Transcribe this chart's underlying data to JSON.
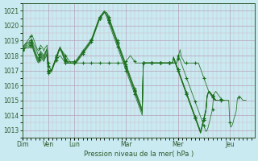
{
  "title": "",
  "xlabel": "Pression niveau de la mer( hPa )",
  "ylabel": "",
  "bg_color": "#c8eaf0",
  "line_color": "#1a6e1a",
  "ylim": [
    1012.5,
    1021.5
  ],
  "yticks": [
    1013,
    1014,
    1015,
    1016,
    1017,
    1018,
    1019,
    1020,
    1021
  ],
  "day_labels": [
    "Dim",
    "Ven",
    "Lun",
    "Mar",
    "Mer",
    "Jeu"
  ],
  "day_positions": [
    0,
    24,
    48,
    96,
    144,
    192
  ],
  "num_points": 216,
  "series": [
    [
      1018.5,
      1018.6,
      1018.7,
      1018.8,
      1018.8,
      1018.9,
      1018.9,
      1019.0,
      1019.0,
      1019.1,
      1018.9,
      1018.7,
      1018.6,
      1018.4,
      1018.2,
      1018.0,
      1018.1,
      1018.3,
      1018.2,
      1018.1,
      1018.0,
      1018.2,
      1018.3,
      1018.4,
      1017.3,
      1017.2,
      1017.1,
      1017.0,
      1017.2,
      1017.4,
      1017.5,
      1017.6,
      1017.7,
      1017.8,
      1017.9,
      1018.0,
      1017.9,
      1017.8,
      1017.7,
      1017.6,
      1017.5,
      1017.5,
      1017.5,
      1017.5,
      1017.5,
      1017.5,
      1017.5,
      1017.5,
      1017.5,
      1017.5,
      1017.5,
      1017.5,
      1017.5,
      1017.5,
      1017.5,
      1017.5,
      1017.5,
      1017.5,
      1017.5,
      1017.5,
      1017.5,
      1017.5,
      1017.5,
      1017.5,
      1017.5,
      1017.5,
      1017.5,
      1017.5,
      1017.5,
      1017.5,
      1017.5,
      1017.5,
      1017.5,
      1017.5,
      1017.5,
      1017.5,
      1017.5,
      1017.5,
      1017.5,
      1017.5,
      1017.5,
      1017.5,
      1017.5,
      1017.5,
      1017.5,
      1017.5,
      1017.5,
      1017.5,
      1017.5,
      1017.5,
      1017.5,
      1017.5,
      1017.5,
      1017.5,
      1017.5,
      1017.5,
      1017.6,
      1017.7,
      1017.8,
      1017.9,
      1018.0,
      1017.9,
      1017.8,
      1017.7,
      1017.6,
      1017.5,
      1017.5,
      1017.5,
      1017.5,
      1017.5,
      1017.5,
      1017.5,
      1017.5,
      1017.5,
      1017.5,
      1017.5,
      1017.5,
      1017.5,
      1017.5,
      1017.5,
      1017.5,
      1017.5,
      1017.5,
      1017.5,
      1017.5,
      1017.5,
      1017.5,
      1017.5,
      1017.5,
      1017.5,
      1017.5,
      1017.5,
      1017.5,
      1017.5,
      1017.5,
      1017.5,
      1017.5,
      1017.5,
      1017.5,
      1017.5,
      1017.5,
      1017.5,
      1017.5,
      1017.5,
      1017.8,
      1018.1,
      1018.4,
      1018.0,
      1017.8,
      1017.7,
      1017.5,
      1017.5,
      1017.5,
      1017.5,
      1017.5,
      1017.5,
      1017.5,
      1017.5,
      1017.5,
      1017.5,
      1017.5,
      1017.5,
      1017.5,
      1017.5,
      1017.3,
      1017.1,
      1016.9,
      1016.7,
      1016.5,
      1016.3,
      1016.1,
      1015.9,
      1015.7,
      1015.5,
      1015.4,
      1015.3,
      1015.2,
      1015.1,
      1015.0,
      1015.0,
      1015.0,
      1015.0,
      1015.0,
      1015.0,
      1015.0,
      1015.0,
      1015.0,
      1015.0,
      1015.0,
      1015.0,
      1015.0,
      1015.0,
      1013.5,
      1013.2,
      1013.3,
      1013.5,
      1013.8,
      1014.0,
      1014.3,
      1015.1,
      1015.2,
      1015.3,
      1015.2,
      1015.1,
      1015.0,
      1015.0,
      1015.0,
      1015.0
    ],
    [
      1018.5,
      1018.6,
      1018.7,
      1018.8,
      1018.9,
      1019.0,
      1019.1,
      1019.2,
      1019.3,
      1019.4,
      1019.2,
      1019.0,
      1018.8,
      1018.6,
      1018.4,
      1018.3,
      1018.5,
      1018.7,
      1018.6,
      1018.5,
      1018.3,
      1018.5,
      1018.6,
      1018.7,
      1017.5,
      1017.3,
      1017.1,
      1017.0,
      1017.2,
      1017.4,
      1017.6,
      1017.8,
      1018.0,
      1018.2,
      1018.4,
      1018.5,
      1018.3,
      1018.1,
      1017.9,
      1017.7,
      1017.5,
      1017.5,
      1017.5,
      1017.5,
      1017.5,
      1017.5,
      1017.5,
      1017.5,
      1017.5,
      1017.5,
      1017.6,
      1017.7,
      1017.8,
      1017.9,
      1018.0,
      1018.1,
      1018.2,
      1018.3,
      1018.4,
      1018.5,
      1018.6,
      1018.7,
      1018.8,
      1018.9,
      1019.0,
      1019.2,
      1019.4,
      1019.6,
      1019.8,
      1020.0,
      1020.2,
      1020.4,
      1020.6,
      1020.7,
      1020.8,
      1020.9,
      1021.0,
      1020.8,
      1020.6,
      1020.4,
      1020.2,
      1020.0,
      1019.8,
      1019.6,
      1019.4,
      1019.2,
      1019.0,
      1018.8,
      1018.6,
      1018.4,
      1018.2,
      1018.0,
      1017.8,
      1017.6,
      1017.4,
      1017.2,
      1017.0,
      1016.8,
      1016.6,
      1016.4,
      1016.2,
      1016.0,
      1015.8,
      1015.6,
      1015.4,
      1015.2,
      1015.0,
      1014.8,
      1014.6,
      1014.4,
      1014.2,
      1014.0,
      1017.5,
      1017.5,
      1017.5,
      1017.5,
      1017.5,
      1017.5,
      1017.5,
      1017.5,
      1017.5,
      1017.5,
      1017.5,
      1017.5,
      1017.5,
      1017.5,
      1017.5,
      1017.5,
      1017.5,
      1017.5,
      1017.5,
      1017.5,
      1017.5,
      1017.5,
      1017.5,
      1017.5,
      1017.5,
      1017.5,
      1017.5,
      1017.5,
      1017.5,
      1017.5,
      1017.5,
      1017.5,
      1018.0,
      1017.9,
      1017.7,
      1017.5,
      1017.3,
      1017.1,
      1016.9,
      1016.7,
      1016.5,
      1016.3,
      1016.1,
      1015.9,
      1015.7,
      1015.5,
      1015.3,
      1015.1,
      1014.9,
      1014.7,
      1014.5,
      1014.3,
      1014.1,
      1013.9,
      1013.7,
      1013.5,
      1013.3,
      1013.1,
      1012.9,
      1013.0,
      1013.2,
      1013.5,
      1013.8,
      1014.1,
      1014.4,
      1015.3,
      1015.5,
      1015.6,
      1015.5,
      1015.4,
      1015.3,
      1015.2,
      1015.1,
      1015.0,
      1015.0,
      1015.0
    ],
    [
      1018.4,
      1018.5,
      1018.6,
      1018.7,
      1018.8,
      1018.8,
      1018.8,
      1018.9,
      1018.9,
      1019.0,
      1018.7,
      1018.5,
      1018.3,
      1018.1,
      1017.9,
      1017.8,
      1018.0,
      1018.2,
      1018.1,
      1018.0,
      1017.9,
      1018.1,
      1018.3,
      1018.5,
      1017.0,
      1017.0,
      1017.0,
      1017.0,
      1017.2,
      1017.4,
      1017.6,
      1017.8,
      1018.0,
      1018.2,
      1018.4,
      1018.6,
      1018.4,
      1018.2,
      1018.0,
      1017.8,
      1017.6,
      1017.6,
      1017.6,
      1017.6,
      1017.6,
      1017.6,
      1017.6,
      1017.6,
      1017.6,
      1017.6,
      1017.7,
      1017.8,
      1017.9,
      1018.0,
      1018.1,
      1018.2,
      1018.3,
      1018.4,
      1018.5,
      1018.6,
      1018.7,
      1018.8,
      1018.9,
      1019.0,
      1019.1,
      1019.3,
      1019.5,
      1019.7,
      1019.9,
      1020.1,
      1020.3,
      1020.5,
      1020.6,
      1020.7,
      1020.8,
      1020.9,
      1021.0,
      1020.9,
      1020.8,
      1020.7,
      1020.5,
      1020.3,
      1020.1,
      1019.9,
      1019.7,
      1019.5,
      1019.3,
      1019.1,
      1018.9,
      1018.7,
      1018.5,
      1018.3,
      1018.1,
      1017.9,
      1017.7,
      1017.5,
      1017.3,
      1017.1,
      1016.9,
      1016.7,
      1016.5,
      1016.3,
      1016.1,
      1015.9,
      1015.7,
      1015.5,
      1015.3,
      1015.1,
      1014.9,
      1014.7,
      1014.5,
      1014.3,
      1017.5,
      1017.5,
      1017.5,
      1017.5,
      1017.5,
      1017.5,
      1017.5,
      1017.5,
      1017.5,
      1017.5,
      1017.5,
      1017.5,
      1017.5,
      1017.5,
      1017.5,
      1017.5,
      1017.5,
      1017.5,
      1017.5,
      1017.5,
      1017.5,
      1017.5,
      1017.5,
      1017.5,
      1017.5,
      1017.5,
      1017.5,
      1017.5,
      1017.9,
      1017.7,
      1017.5,
      1017.3,
      1017.1,
      1016.9,
      1016.7,
      1016.5,
      1016.3,
      1016.1,
      1015.9,
      1015.7,
      1015.5,
      1015.3,
      1015.1,
      1014.9,
      1014.7,
      1014.5,
      1014.3,
      1014.1,
      1013.9,
      1013.7,
      1013.5,
      1013.3,
      1013.1,
      1012.9,
      1013.1,
      1013.4,
      1013.7,
      1014.0,
      1014.3,
      1015.2,
      1015.5,
      1015.6,
      1015.5,
      1015.4,
      1015.3,
      1015.2,
      1015.1,
      1015.0,
      1015.0,
      1015.0
    ],
    [
      1018.3,
      1018.4,
      1018.5,
      1018.6,
      1018.7,
      1018.7,
      1018.7,
      1018.8,
      1018.8,
      1018.9,
      1018.6,
      1018.4,
      1018.2,
      1018.0,
      1017.8,
      1017.7,
      1017.9,
      1018.1,
      1018.0,
      1017.9,
      1017.8,
      1018.0,
      1018.2,
      1018.4,
      1016.8,
      1016.8,
      1016.9,
      1016.9,
      1017.1,
      1017.3,
      1017.5,
      1017.7,
      1017.9,
      1018.1,
      1018.3,
      1018.5,
      1018.4,
      1018.3,
      1018.2,
      1018.1,
      1018.0,
      1017.9,
      1017.8,
      1017.7,
      1017.6,
      1017.5,
      1017.5,
      1017.5,
      1017.5,
      1017.5,
      1017.6,
      1017.7,
      1017.8,
      1017.9,
      1018.0,
      1018.1,
      1018.2,
      1018.3,
      1018.4,
      1018.5,
      1018.6,
      1018.7,
      1018.8,
      1018.9,
      1019.0,
      1019.2,
      1019.4,
      1019.6,
      1019.8,
      1020.0,
      1020.2,
      1020.4,
      1020.5,
      1020.6,
      1020.7,
      1020.8,
      1020.9,
      1020.9,
      1020.9,
      1020.8,
      1020.6,
      1020.4,
      1020.2,
      1020.0,
      1019.8,
      1019.6,
      1019.4,
      1019.2,
      1019.0,
      1018.8,
      1018.6,
      1018.4,
      1018.2,
      1018.0,
      1017.8,
      1017.6,
      1017.4,
      1017.2,
      1017.0,
      1016.8,
      1016.6,
      1016.4,
      1016.2,
      1016.0,
      1015.8,
      1015.6,
      1015.4,
      1015.2,
      1015.0,
      1014.8,
      1014.6,
      1014.4,
      1017.5,
      1017.5,
      1017.5,
      1017.5,
      1017.5,
      1017.5,
      1017.5,
      1017.5,
      1017.5,
      1017.5,
      1017.5,
      1017.5,
      1017.5,
      1017.5,
      1017.5,
      1017.5,
      1017.5,
      1017.5,
      1017.5,
      1017.5,
      1017.5,
      1017.5,
      1017.5,
      1017.5,
      1017.5,
      1017.5,
      1017.5,
      1017.5,
      1017.8,
      1017.6,
      1017.4,
      1017.2,
      1017.0,
      1016.8,
      1016.6,
      1016.4,
      1016.2,
      1016.0,
      1015.8,
      1015.6,
      1015.4,
      1015.2,
      1015.0,
      1014.8,
      1014.6,
      1014.4,
      1014.2,
      1014.0,
      1013.8,
      1013.6,
      1013.4,
      1013.2,
      1013.0,
      1012.8,
      1013.2,
      1013.5,
      1013.8,
      1014.1,
      1014.4,
      1015.3,
      1015.5,
      1015.6,
      1015.5,
      1015.4,
      1015.3,
      1015.2,
      1015.1,
      1015.0,
      1015.0,
      1015.0
    ],
    [
      1018.5,
      1018.5,
      1018.5,
      1018.5,
      1018.6,
      1018.6,
      1018.6,
      1018.7,
      1018.7,
      1018.8,
      1018.5,
      1018.3,
      1018.1,
      1017.9,
      1017.7,
      1017.6,
      1017.8,
      1018.0,
      1017.9,
      1017.8,
      1017.7,
      1017.9,
      1018.0,
      1018.2,
      1017.0,
      1017.0,
      1017.0,
      1017.0,
      1017.2,
      1017.4,
      1017.6,
      1017.8,
      1018.0,
      1018.2,
      1018.4,
      1018.5,
      1018.4,
      1018.3,
      1018.1,
      1018.0,
      1017.8,
      1017.7,
      1017.6,
      1017.5,
      1017.5,
      1017.5,
      1017.5,
      1017.5,
      1017.5,
      1017.5,
      1017.6,
      1017.7,
      1017.8,
      1017.9,
      1018.0,
      1018.1,
      1018.2,
      1018.3,
      1018.4,
      1018.5,
      1018.6,
      1018.7,
      1018.8,
      1018.9,
      1019.0,
      1019.2,
      1019.4,
      1019.6,
      1019.8,
      1020.0,
      1020.2,
      1020.4,
      1020.5,
      1020.6,
      1020.7,
      1020.8,
      1020.9,
      1020.8,
      1020.7,
      1020.6,
      1020.4,
      1020.2,
      1020.0,
      1019.8,
      1019.6,
      1019.4,
      1019.2,
      1019.0,
      1018.8,
      1018.6,
      1018.4,
      1018.2,
      1018.0,
      1017.8,
      1017.6,
      1017.4,
      1017.2,
      1017.0,
      1016.8,
      1016.6,
      1016.4,
      1016.2,
      1016.0,
      1015.8,
      1015.6,
      1015.4,
      1015.2,
      1015.0,
      1014.8,
      1014.6,
      1014.4,
      1014.2,
      1017.5,
      1017.5,
      1017.5,
      1017.5,
      1017.5,
      1017.5,
      1017.5,
      1017.5,
      1017.5,
      1017.5,
      1017.5,
      1017.5,
      1017.5,
      1017.5,
      1017.5,
      1017.5,
      1017.5,
      1017.5,
      1017.5,
      1017.5,
      1017.5,
      1017.5,
      1017.5,
      1017.5,
      1017.5,
      1017.5,
      1017.5,
      1017.5,
      1017.9,
      1017.7,
      1017.5,
      1017.3,
      1017.1,
      1016.9,
      1016.7,
      1016.5,
      1016.3,
      1016.1,
      1015.9,
      1015.7,
      1015.5,
      1015.3,
      1015.1,
      1014.9,
      1014.7,
      1014.5,
      1014.3,
      1014.1,
      1013.9,
      1013.7,
      1013.5,
      1013.3,
      1013.1,
      1012.9,
      1013.1,
      1013.4,
      1013.7,
      1014.0,
      1014.3,
      1015.2,
      1015.5,
      1015.6,
      1015.5,
      1015.4,
      1015.3,
      1015.2,
      1015.1,
      1015.0,
      1015.0,
      1015.0
    ],
    [
      1018.4,
      1018.4,
      1018.4,
      1018.5,
      1018.5,
      1018.5,
      1018.5,
      1018.6,
      1018.6,
      1018.7,
      1018.4,
      1018.2,
      1018.0,
      1017.8,
      1017.6,
      1017.5,
      1017.7,
      1017.9,
      1017.8,
      1017.7,
      1017.6,
      1017.8,
      1017.9,
      1018.1,
      1016.9,
      1016.9,
      1016.9,
      1016.9,
      1017.1,
      1017.3,
      1017.5,
      1017.7,
      1017.9,
      1018.1,
      1018.3,
      1018.4,
      1018.3,
      1018.2,
      1018.0,
      1017.9,
      1017.7,
      1017.6,
      1017.5,
      1017.5,
      1017.5,
      1017.5,
      1017.5,
      1017.5,
      1017.5,
      1017.5,
      1017.5,
      1017.6,
      1017.7,
      1017.8,
      1017.9,
      1018.0,
      1018.1,
      1018.2,
      1018.3,
      1018.4,
      1018.5,
      1018.6,
      1018.7,
      1018.8,
      1018.9,
      1019.1,
      1019.3,
      1019.5,
      1019.7,
      1019.9,
      1020.1,
      1020.3,
      1020.5,
      1020.6,
      1020.7,
      1020.8,
      1020.9,
      1020.8,
      1020.7,
      1020.6,
      1020.4,
      1020.2,
      1020.0,
      1019.8,
      1019.6,
      1019.4,
      1019.2,
      1019.0,
      1018.8,
      1018.6,
      1018.4,
      1018.2,
      1018.0,
      1017.8,
      1017.6,
      1017.4,
      1017.2,
      1017.0,
      1016.8,
      1016.6,
      1016.4,
      1016.2,
      1016.0,
      1015.8,
      1015.6,
      1015.4,
      1015.2,
      1015.0,
      1014.8,
      1014.6,
      1014.4,
      1014.2,
      1017.5,
      1017.5,
      1017.5,
      1017.5,
      1017.5,
      1017.5,
      1017.5,
      1017.5,
      1017.5,
      1017.5,
      1017.5,
      1017.5,
      1017.5,
      1017.5,
      1017.5,
      1017.5,
      1017.5,
      1017.5,
      1017.5,
      1017.5,
      1017.5,
      1017.5,
      1017.5,
      1017.5,
      1017.5,
      1017.5,
      1017.5,
      1017.5,
      1017.8,
      1017.6,
      1017.4,
      1017.2,
      1017.0,
      1016.8,
      1016.6,
      1016.4,
      1016.2,
      1016.0,
      1015.8,
      1015.6,
      1015.4,
      1015.2,
      1015.0,
      1014.8,
      1014.6,
      1014.4,
      1014.2,
      1014.0,
      1013.8,
      1013.6,
      1013.4,
      1013.2,
      1013.0,
      1012.8,
      1013.2,
      1013.5,
      1013.8,
      1014.1,
      1014.4,
      1015.3,
      1015.5,
      1015.6,
      1015.5,
      1015.4,
      1015.3,
      1015.2,
      1015.1,
      1015.0,
      1015.0,
      1015.0
    ]
  ]
}
